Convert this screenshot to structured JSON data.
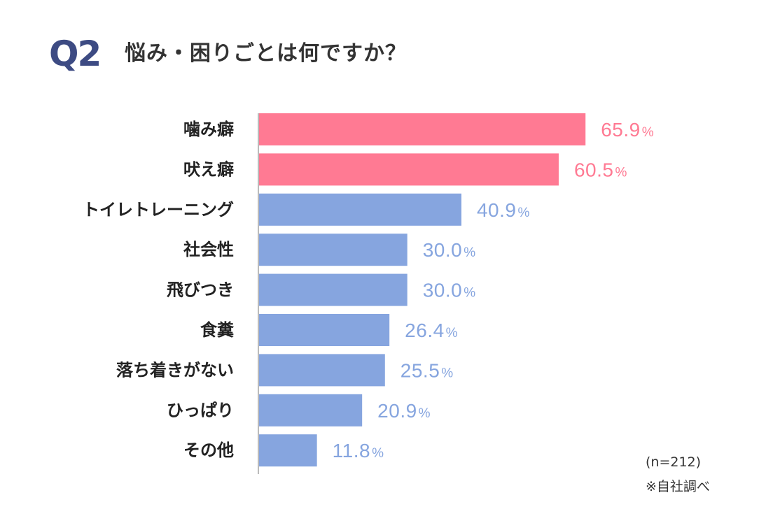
{
  "header": {
    "tag": "Q2",
    "question": "悩み・困りごとは何ですか？"
  },
  "chart_data": {
    "type": "bar",
    "orientation": "horizontal",
    "title": "悩み・困りごとは何ですか？",
    "categories": [
      "噛み癖",
      "吠え癖",
      "トイレトレーニング",
      "社会性",
      "飛びつき",
      "食糞",
      "落ち着きがない",
      "ひっぱり",
      "その他"
    ],
    "values": [
      65.9,
      60.5,
      40.9,
      30.0,
      30.0,
      26.4,
      25.5,
      20.9,
      11.8
    ],
    "value_labels": [
      "65.9",
      "60.5",
      "40.9",
      "30.0",
      "30.0",
      "26.4",
      "25.5",
      "20.9",
      "11.8"
    ],
    "unit": "%",
    "highlight_count": 2,
    "colors": {
      "highlight": "#ff7a93",
      "normal": "#86a5df",
      "axis": "#bbbbbb"
    },
    "xlim": [
      0,
      100
    ],
    "grid": false
  },
  "notes": {
    "sample": "(n=212)",
    "source": "※自社調べ"
  }
}
